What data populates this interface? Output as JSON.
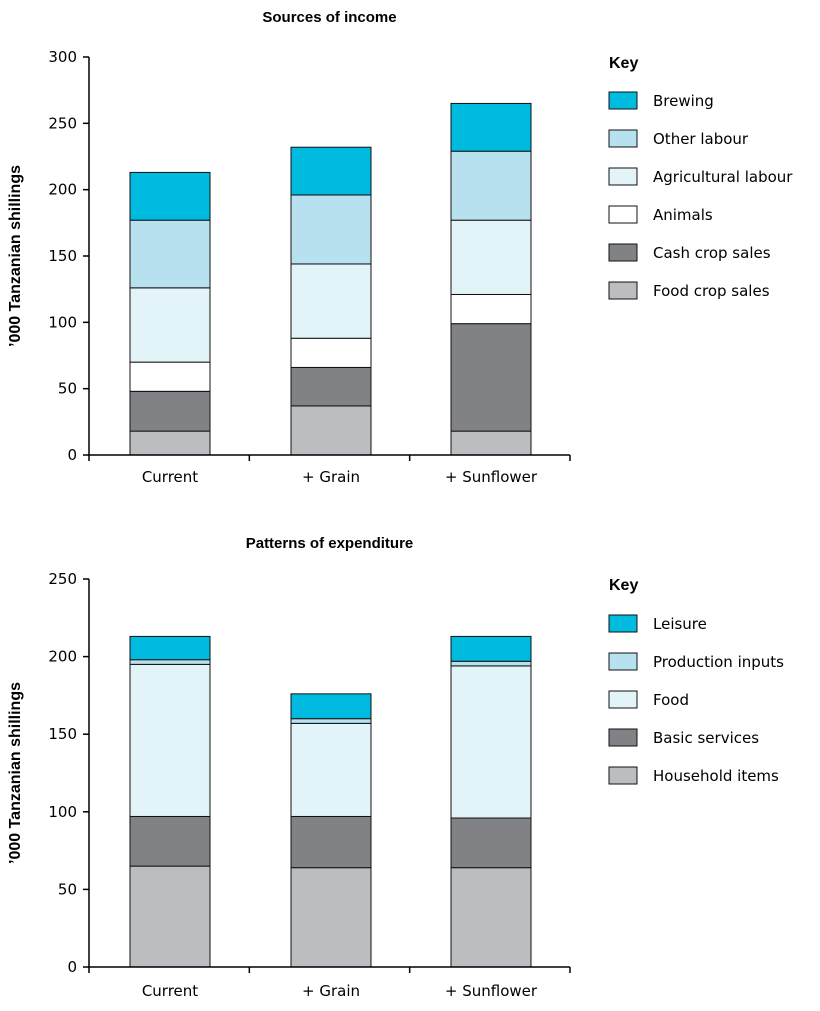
{
  "chart_data": [
    {
      "type": "bar",
      "stacked": true,
      "title": "Sources of income",
      "xlabel": "",
      "ylabel": "’000 Tanzanian shillings",
      "ylim": [
        0,
        300
      ],
      "yticks": [
        0,
        50,
        100,
        150,
        200,
        250,
        300
      ],
      "categories": [
        "Current",
        "+ Grain",
        "+ Sunflower"
      ],
      "legend_title": "Key",
      "legend_position": "right",
      "series": [
        {
          "name": "Food crop sales",
          "color": "#bcbdc0",
          "values": [
            18,
            37,
            18
          ]
        },
        {
          "name": "Cash crop sales",
          "color": "#808285",
          "values": [
            30,
            29,
            81
          ]
        },
        {
          "name": "Animals",
          "color": "#ffffff",
          "values": [
            22,
            22,
            22
          ]
        },
        {
          "name": "Agricultural labour",
          "color": "#e3f4f9",
          "values": [
            56,
            56,
            56
          ]
        },
        {
          "name": "Other labour",
          "color": "#b8e1ef",
          "values": [
            51,
            52,
            52
          ]
        },
        {
          "name": "Brewing",
          "color": "#00bbe0",
          "values": [
            36,
            36,
            36
          ]
        }
      ]
    },
    {
      "type": "bar",
      "stacked": true,
      "title": "Patterns of expenditure",
      "xlabel": "",
      "ylabel": "’000 Tanzanian shillings",
      "ylim": [
        0,
        250
      ],
      "yticks": [
        0,
        50,
        100,
        150,
        200,
        250
      ],
      "categories": [
        "Current",
        "+ Grain",
        "+ Sunflower"
      ],
      "legend_title": "Key",
      "legend_position": "right",
      "series": [
        {
          "name": "Household items",
          "color": "#bcbdc0",
          "values": [
            65,
            64,
            64
          ]
        },
        {
          "name": "Basic services",
          "color": "#808285",
          "values": [
            32,
            33,
            32
          ]
        },
        {
          "name": "Food",
          "color": "#e3f4f9",
          "values": [
            98,
            60,
            98
          ]
        },
        {
          "name": "Production inputs",
          "color": "#b8e1ef",
          "values": [
            3,
            3,
            3
          ]
        },
        {
          "name": "Leisure",
          "color": "#00bbe0",
          "values": [
            15,
            16,
            16
          ]
        }
      ]
    }
  ]
}
